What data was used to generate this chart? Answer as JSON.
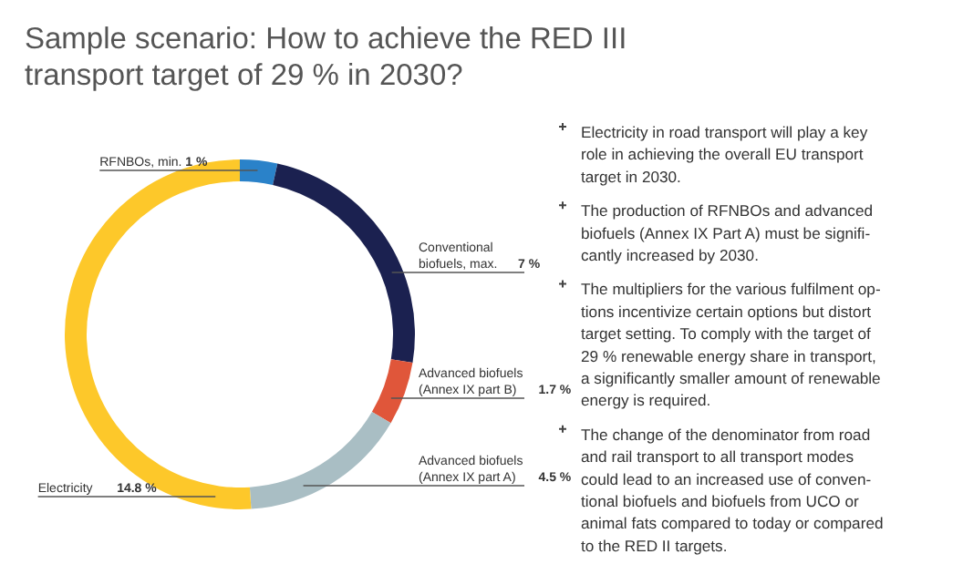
{
  "chart_data": {
    "type": "donut",
    "title": "Sample scenario: How to achieve the RED III\ntransport target of 29 % in 2030?",
    "categories": [
      "RFNBOs, min.",
      "Conventional\nbiofuels, max.",
      "Advanced biofuels\n(Annex IX part B)",
      "Advanced biofuels\n(Annex IX part A)",
      "Electricity"
    ],
    "values": [
      1,
      7,
      1.7,
      4.5,
      14.8
    ],
    "value_labels": [
      "1 %",
      "7 %",
      "1.7 %",
      "4.5 %",
      "14.8 %"
    ],
    "colors": [
      "#2a82c9",
      "#1b2150",
      "#e0563a",
      "#a9bec4",
      "#fdc82a"
    ],
    "annotations": [
      "Electricity in road transport will play a key\nrole in achieving the overall EU transport\ntarget in 2030.",
      "The production of RFNBOs and advanced\nbiofuels (Annex IX Part A) must be signifi-\ncantly increased by 2030.",
      "The multipliers for the various fulfilment op-\ntions incentivize certain options but distort\ntarget setting. To comply with the target of\n29 % renewable energy share in transport,\na significantly smaller amount of renewable\nenergy is required.",
      "The change of the denominator from road\nand rail transport to all transport modes\ncould lead to an increased use of conven-\ntional biofuels and biofuels from UCO or\nanimal fats compared to today or compared\nto the RED II targets."
    ],
    "legend": false
  }
}
